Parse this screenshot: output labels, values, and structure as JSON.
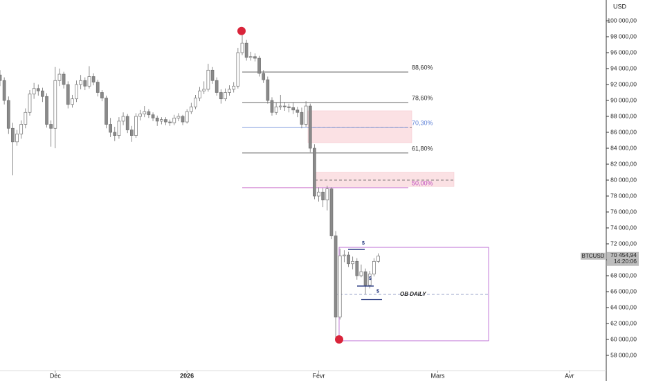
{
  "chart_data": {
    "type": "candlestick",
    "currency": "USD",
    "xlim": [
      0,
      142.5
    ],
    "xticks": [
      {
        "value": 13,
        "label": "Déc"
      },
      {
        "value": 44,
        "label": "2026"
      },
      {
        "value": 75,
        "label": "Févr"
      },
      {
        "value": 103,
        "label": "Mars"
      },
      {
        "value": 134,
        "label": "Avr"
      }
    ],
    "ylim": [
      56087,
      102609
    ],
    "yticks": [
      {
        "value": 58000,
        "label": "58 000,00"
      },
      {
        "value": 60000,
        "label": "60 000,00"
      },
      {
        "value": 62000,
        "label": "62 000,00"
      },
      {
        "value": 64000,
        "label": "64 000,00"
      },
      {
        "value": 66000,
        "label": "66 000,00"
      },
      {
        "value": 68000,
        "label": "68 000,00"
      },
      {
        "value": 70000,
        "label": "70 000,00"
      },
      {
        "value": 72000,
        "label": "72 000,00"
      },
      {
        "value": 74000,
        "label": "74 000,00"
      },
      {
        "value": 76000,
        "label": "76 000,00"
      },
      {
        "value": 78000,
        "label": "78 000,00"
      },
      {
        "value": 80000,
        "label": "80 000,00"
      },
      {
        "value": 82000,
        "label": "82 000,00"
      },
      {
        "value": 84000,
        "label": "84 000,00"
      },
      {
        "value": 86000,
        "label": "86 000,00"
      },
      {
        "value": 88000,
        "label": "88 000,00"
      },
      {
        "value": 90000,
        "label": "90 000,00"
      },
      {
        "value": 92000,
        "label": "92 000,00"
      },
      {
        "value": 94000,
        "label": "94 000,00"
      },
      {
        "value": 96000,
        "label": "96 000,00"
      },
      {
        "value": 98000,
        "label": "98 000,00"
      },
      {
        "value": 100000,
        "label": "100 000,00"
      }
    ],
    "series": [
      {
        "name": "BTCUSD",
        "up_color": "#ffffff",
        "down_color": "#8a8a8a",
        "edge_color": "#707070",
        "x": [
          0,
          1,
          2,
          3,
          4,
          5,
          6,
          7,
          8,
          9,
          10,
          11,
          12,
          13,
          14,
          15,
          16,
          17,
          18,
          19,
          20,
          21,
          22,
          23,
          24,
          25,
          26,
          27,
          28,
          29,
          30,
          31,
          32,
          33,
          34,
          35,
          36,
          37,
          38,
          39,
          40,
          41,
          42,
          43,
          44,
          45,
          46,
          47,
          48,
          49,
          50,
          51,
          52,
          53,
          54,
          55,
          56,
          57,
          58,
          59,
          60,
          61,
          62,
          63,
          64,
          65,
          66,
          67,
          68,
          69,
          70,
          71,
          72,
          73,
          74,
          75,
          76,
          77,
          78,
          79,
          80,
          81,
          82,
          83,
          84,
          85,
          86,
          87,
          88,
          89
        ],
        "ohlc": [
          [
            93200,
            93800,
            91800,
            92500
          ],
          [
            92500,
            92900,
            89500,
            90000
          ],
          [
            90000,
            90500,
            85800,
            86500
          ],
          [
            86500,
            87200,
            80600,
            84800
          ],
          [
            84800,
            86300,
            84300,
            85800
          ],
          [
            85800,
            87500,
            85200,
            87000
          ],
          [
            87000,
            89000,
            86500,
            88500
          ],
          [
            88500,
            91300,
            88100,
            90800
          ],
          [
            90800,
            92200,
            90200,
            91500
          ],
          [
            91500,
            92000,
            90600,
            91200
          ],
          [
            91200,
            91600,
            89800,
            90500
          ],
          [
            90500,
            90900,
            86600,
            87000
          ],
          [
            87000,
            87500,
            84200,
            86500
          ],
          [
            86500,
            94200,
            84000,
            92500
          ],
          [
            92500,
            94000,
            91800,
            93300
          ],
          [
            93300,
            93600,
            91500,
            92000
          ],
          [
            92000,
            92400,
            89000,
            89500
          ],
          [
            89500,
            90700,
            89100,
            90200
          ],
          [
            90200,
            92500,
            89800,
            92000
          ],
          [
            92000,
            93200,
            91400,
            92500
          ],
          [
            92500,
            92900,
            91300,
            91800
          ],
          [
            91800,
            94300,
            91500,
            93000
          ],
          [
            93000,
            93400,
            91900,
            92300
          ],
          [
            92300,
            92600,
            90500,
            91000
          ],
          [
            91000,
            91300,
            89900,
            90300
          ],
          [
            90300,
            90600,
            86500,
            87000
          ],
          [
            87000,
            87800,
            85400,
            86000
          ],
          [
            86000,
            86700,
            84900,
            85600
          ],
          [
            85600,
            87900,
            85200,
            87400
          ],
          [
            87400,
            88500,
            86900,
            88000
          ],
          [
            88000,
            88300,
            85900,
            86300
          ],
          [
            86300,
            86800,
            84800,
            85600
          ],
          [
            85600,
            88400,
            85300,
            88000
          ],
          [
            88000,
            88800,
            87500,
            88300
          ],
          [
            88300,
            89300,
            87900,
            88600
          ],
          [
            88600,
            88900,
            87800,
            88200
          ],
          [
            88200,
            88500,
            87400,
            87800
          ],
          [
            87800,
            88100,
            86800,
            87400
          ],
          [
            87400,
            87900,
            87000,
            87600
          ],
          [
            87600,
            87900,
            86900,
            87300
          ],
          [
            87300,
            87600,
            86800,
            87200
          ],
          [
            87200,
            88200,
            86900,
            87800
          ],
          [
            87800,
            88400,
            87400,
            88000
          ],
          [
            88000,
            88200,
            86900,
            87300
          ],
          [
            87300,
            88900,
            87100,
            88600
          ],
          [
            88600,
            89700,
            88300,
            89200
          ],
          [
            89200,
            90700,
            88900,
            90300
          ],
          [
            90300,
            91700,
            89900,
            91200
          ],
          [
            91200,
            92400,
            90800,
            91400
          ],
          [
            91400,
            94600,
            91100,
            93800
          ],
          [
            93800,
            94200,
            92100,
            92500
          ],
          [
            92500,
            92900,
            90600,
            91000
          ],
          [
            91000,
            91400,
            89600,
            90200
          ],
          [
            90200,
            91500,
            89900,
            91000
          ],
          [
            91000,
            91900,
            90600,
            91400
          ],
          [
            91400,
            92300,
            91000,
            91800
          ],
          [
            91800,
            96600,
            91500,
            96000
          ],
          [
            96000,
            98200,
            95700,
            97200
          ],
          [
            97200,
            97600,
            95000,
            95400
          ],
          [
            95400,
            96100,
            95000,
            95500
          ],
          [
            95500,
            95900,
            94900,
            95300
          ],
          [
            95300,
            95600,
            93000,
            93400
          ],
          [
            93400,
            93800,
            92200,
            92600
          ],
          [
            92600,
            93000,
            89600,
            90000
          ],
          [
            90000,
            90400,
            88100,
            88500
          ],
          [
            88500,
            89700,
            88200,
            89200
          ],
          [
            89200,
            90700,
            88800,
            89300
          ],
          [
            89300,
            89800,
            88700,
            89200
          ],
          [
            89200,
            89600,
            88500,
            89100
          ],
          [
            89100,
            89700,
            88300,
            88800
          ],
          [
            88800,
            89200,
            87900,
            88500
          ],
          [
            88500,
            89100,
            86500,
            87000
          ],
          [
            87000,
            89900,
            86700,
            89300
          ],
          [
            89300,
            89600,
            83500,
            84000
          ],
          [
            84000,
            84500,
            77600,
            78000
          ],
          [
            78000,
            79100,
            77300,
            78500
          ],
          [
            78500,
            79000,
            76600,
            77500
          ],
          [
            77500,
            79300,
            76200,
            78900
          ],
          [
            78900,
            79100,
            72600,
            73000
          ],
          [
            73000,
            73600,
            60000,
            62800
          ],
          [
            62800,
            71400,
            62500,
            70500
          ],
          [
            70500,
            71200,
            69700,
            70600
          ],
          [
            70600,
            71000,
            69100,
            69500
          ],
          [
            69500,
            70400,
            68800,
            69800
          ],
          [
            69800,
            70200,
            67500,
            68000
          ],
          [
            68000,
            69400,
            67800,
            68500
          ],
          [
            68500,
            68900,
            65700,
            66800
          ],
          [
            66800,
            68600,
            66400,
            68200
          ],
          [
            68200,
            70200,
            67900,
            69800
          ],
          [
            69800,
            70800,
            69600,
            70454.94
          ]
        ]
      }
    ],
    "price_tag": {
      "value": 70454.94,
      "label": "70 454,94",
      "time": "14:20:06",
      "color": "#bdbdbd"
    },
    "fib_levels": [
      {
        "label": "88,60%",
        "value": 93565,
        "color": "#333333"
      },
      {
        "label": "78,60%",
        "value": 89740,
        "color": "#333333"
      },
      {
        "label": "70,30%",
        "value": 86600,
        "color": "#5b7fd6"
      },
      {
        "label": "61,80%",
        "value": 83400,
        "color": "#333333"
      },
      {
        "label": "50,00%",
        "value": 79050,
        "color": "#c050c0"
      }
    ],
    "zones": [
      {
        "high": 88700,
        "low": 84700,
        "mid": 86600,
        "color": "#fbe1e4"
      },
      {
        "high": 81000,
        "low": 79200,
        "mid": 80000,
        "color": "#fbe1e4"
      }
    ],
    "box": {
      "high": 71560,
      "low": 59830,
      "color": "#b45bd0"
    },
    "ob": {
      "label": "OB DAILY",
      "value": 65650
    },
    "liquidity": [
      {
        "label": "$",
        "value": 71300
      },
      {
        "label": "$",
        "value": 66700
      },
      {
        "label": "$",
        "value": 65000
      }
    ],
    "pivots": [
      {
        "value": 98200,
        "color": "#d9243a"
      },
      {
        "value": 60000,
        "color": "#d9243a"
      }
    ]
  }
}
